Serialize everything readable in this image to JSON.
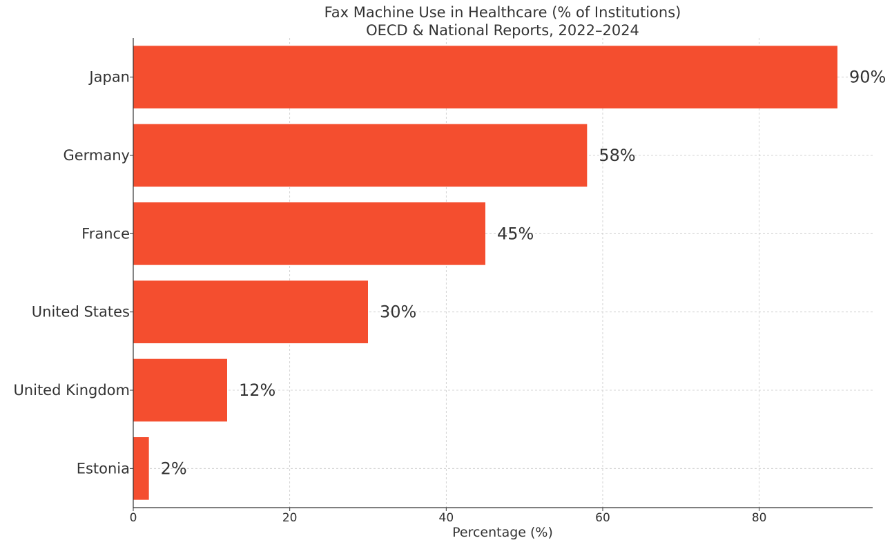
{
  "chart_data": {
    "type": "bar",
    "orientation": "horizontal",
    "title": "Fax Machine Use in Healthcare (% of Institutions)",
    "subtitle": "OECD & National Reports, 2022–2024",
    "xlabel": "Percentage (%)",
    "ylabel": "",
    "categories": [
      "Japan",
      "Germany",
      "France",
      "United States",
      "United Kingdom",
      "Estonia"
    ],
    "values": [
      90,
      58,
      45,
      30,
      12,
      2
    ],
    "data_labels": [
      "90%",
      "58%",
      "45%",
      "30%",
      "12%",
      "2%"
    ],
    "xlim": [
      0,
      94.5
    ],
    "xticks": [
      0,
      20,
      40,
      60,
      80
    ],
    "xtick_labels": [
      "0",
      "20",
      "40",
      "60",
      "80"
    ],
    "grid": true,
    "bar_color": "#f44e2f"
  }
}
